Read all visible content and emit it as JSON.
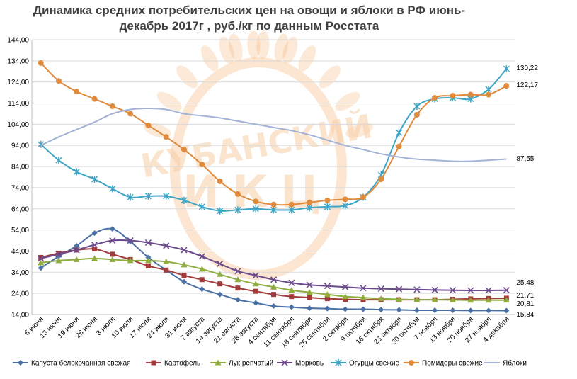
{
  "chart_data": {
    "type": "line",
    "title_lines": [
      "Динамика средних потребительских цен на овощи и яблоки в РФ июнь-",
      "декабрь 2017г , руб./кг по данным Росстата"
    ],
    "xlabel": "",
    "ylabel": "",
    "ylim": [
      14,
      144
    ],
    "yticks": [
      14,
      24,
      34,
      44,
      54,
      64,
      74,
      84,
      94,
      104,
      114,
      124,
      134,
      144
    ],
    "ytick_labels": [
      "14,00",
      "24,00",
      "34,00",
      "44,00",
      "54,00",
      "64,00",
      "74,00",
      "84,00",
      "94,00",
      "104,00",
      "114,00",
      "124,00",
      "134,00",
      "144,00"
    ],
    "grid": "horizontal",
    "legend_position": "bottom",
    "categories": [
      "5 июня",
      "13 июня",
      "19 июня",
      "26 июня",
      "3 июля",
      "10 июля",
      "17 июля",
      "24 июля",
      "31 июля",
      "7 августа",
      "14 августа",
      "21 августа",
      "28 августа",
      "4 сентября",
      "11 сентября",
      "18 сентября",
      "25 сентября",
      "2 октября",
      "9 октября",
      "16 октября",
      "23 октября",
      "30 октября",
      "7 ноября",
      "13 ноября",
      "20 ноября",
      "27 ноября",
      "4 декабря"
    ],
    "series": [
      {
        "name": "Капуста белокочанная свежая",
        "color": "#4a6fa5",
        "marker": "diamond",
        "values": [
          36.0,
          41.5,
          46.5,
          52.5,
          54.5,
          48.5,
          41.0,
          35.0,
          29.5,
          26.0,
          23.5,
          21.0,
          19.5,
          18.0,
          17.5,
          17.0,
          16.8,
          16.5,
          16.5,
          16.3,
          16.2,
          16.0,
          16.0,
          16.0,
          15.9,
          15.9,
          15.84
        ]
      },
      {
        "name": "Картофель",
        "color": "#a23b3b",
        "marker": "square",
        "values": [
          41.0,
          43.0,
          44.5,
          45.0,
          42.5,
          40.0,
          37.0,
          35.0,
          32.5,
          30.5,
          28.5,
          26.5,
          25.0,
          23.5,
          22.5,
          22.0,
          21.5,
          21.2,
          21.0,
          21.0,
          21.0,
          21.0,
          21.0,
          21.2,
          21.4,
          21.6,
          21.71
        ]
      },
      {
        "name": "Лук репчатый",
        "color": "#8fad3f",
        "marker": "triangle",
        "values": [
          38.5,
          39.5,
          40.0,
          40.5,
          40.0,
          39.5,
          39.5,
          39.0,
          37.5,
          35.5,
          33.0,
          30.5,
          28.5,
          27.0,
          25.5,
          24.5,
          23.5,
          22.5,
          22.0,
          21.5,
          21.2,
          21.0,
          21.0,
          20.9,
          20.8,
          20.8,
          20.81
        ]
      },
      {
        "name": "Морковь",
        "color": "#6b4a8c",
        "marker": "x",
        "values": [
          40.5,
          42.5,
          44.5,
          47.0,
          49.0,
          49.0,
          48.0,
          46.5,
          44.5,
          41.5,
          38.0,
          34.5,
          32.5,
          30.5,
          29.0,
          28.0,
          27.5,
          27.0,
          26.5,
          26.2,
          26.0,
          25.8,
          25.6,
          25.5,
          25.4,
          25.4,
          25.48
        ]
      },
      {
        "name": "Огурцы свежие",
        "color": "#3fa5c4",
        "marker": "star",
        "values": [
          94.5,
          87.0,
          81.5,
          78.0,
          73.5,
          69.5,
          70.0,
          70.0,
          68.0,
          65.0,
          63.0,
          63.5,
          64.0,
          63.5,
          63.5,
          64.5,
          65.0,
          65.5,
          69.5,
          80.0,
          100.0,
          112.5,
          116.0,
          116.5,
          116.0,
          120.5,
          130.22
        ]
      },
      {
        "name": "Помидоры свежие",
        "color": "#e08a3c",
        "marker": "circle",
        "values": [
          133.0,
          124.5,
          119.5,
          116.0,
          112.5,
          109.0,
          103.5,
          98.0,
          92.0,
          85.0,
          77.0,
          71.0,
          67.5,
          66.0,
          66.0,
          67.0,
          68.0,
          68.5,
          69.5,
          78.0,
          93.5,
          108.5,
          116.5,
          117.5,
          118.0,
          118.0,
          122.17
        ]
      },
      {
        "name": "Яблоки",
        "color": "#a3b3d6",
        "marker": "none",
        "values": [
          94.0,
          98.0,
          101.5,
          105.0,
          109.0,
          111.0,
          111.5,
          111.0,
          109.0,
          108.0,
          107.0,
          105.5,
          104.0,
          102.5,
          101.0,
          99.0,
          96.5,
          94.0,
          92.0,
          90.0,
          88.5,
          87.5,
          87.0,
          86.5,
          86.5,
          87.0,
          87.55
        ]
      }
    ],
    "end_labels": [
      "15,84",
      "21,71",
      "20,81",
      "25,48",
      "130,22",
      "122,17",
      "87,55"
    ]
  },
  "watermark": {
    "line1": "КУБАНСКИЙ",
    "line2": "ИКЦ",
    "color": "#f5b57a"
  }
}
